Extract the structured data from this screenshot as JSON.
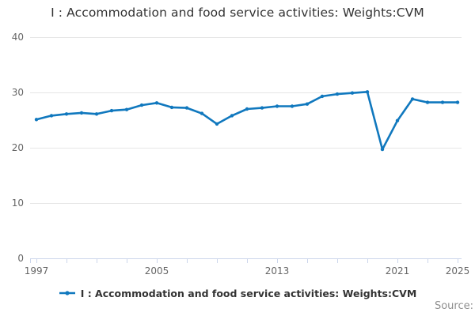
{
  "title": "I : Accommodation and food service activities: Weights:CVM",
  "source_label": "Source:",
  "legend": {
    "marker": "line-with-dot",
    "label": "I : Accommodation and food service activities: Weights:CVM"
  },
  "chart_data": {
    "type": "line",
    "title": "I : Accommodation and food service activities: Weights:CVM",
    "xlabel": "",
    "ylabel": "",
    "ylim": [
      0,
      40
    ],
    "yticks": [
      0,
      10,
      20,
      30,
      40
    ],
    "xtick_years": [
      1997,
      1999,
      2001,
      2003,
      2005,
      2007,
      2009,
      2011,
      2013,
      2015,
      2017,
      2019,
      2021,
      2023,
      2025
    ],
    "xtick_labels": [
      {
        "year": 1997,
        "label": "1997"
      },
      {
        "year": 2005,
        "label": "2005"
      },
      {
        "year": 2013,
        "label": "2013"
      },
      {
        "year": 2021,
        "label": "2021"
      },
      {
        "year": 2025,
        "label": "2025"
      }
    ],
    "grid": "horizontal",
    "legend_position": "bottom-center",
    "grid_color": "#e6e6e6",
    "axis_line_color": "#ccd6eb",
    "axis_label_color": "#666666",
    "series": [
      {
        "name": "I : Accommodation and food service activities: Weights:CVM",
        "color": "#1078be",
        "x": [
          1997,
          1998,
          1999,
          2000,
          2001,
          2002,
          2003,
          2004,
          2005,
          2006,
          2007,
          2008,
          2009,
          2010,
          2011,
          2012,
          2013,
          2014,
          2015,
          2016,
          2017,
          2018,
          2019,
          2020,
          2021,
          2022,
          2023,
          2024,
          2025
        ],
        "values": [
          25.1,
          25.8,
          26.1,
          26.3,
          26.1,
          26.7,
          26.9,
          27.7,
          28.1,
          27.3,
          27.2,
          26.2,
          24.3,
          25.8,
          27.0,
          27.2,
          27.5,
          27.5,
          27.9,
          29.3,
          29.7,
          29.9,
          30.1,
          19.7,
          24.9,
          28.8,
          28.2,
          28.2,
          28.2
        ]
      }
    ]
  }
}
